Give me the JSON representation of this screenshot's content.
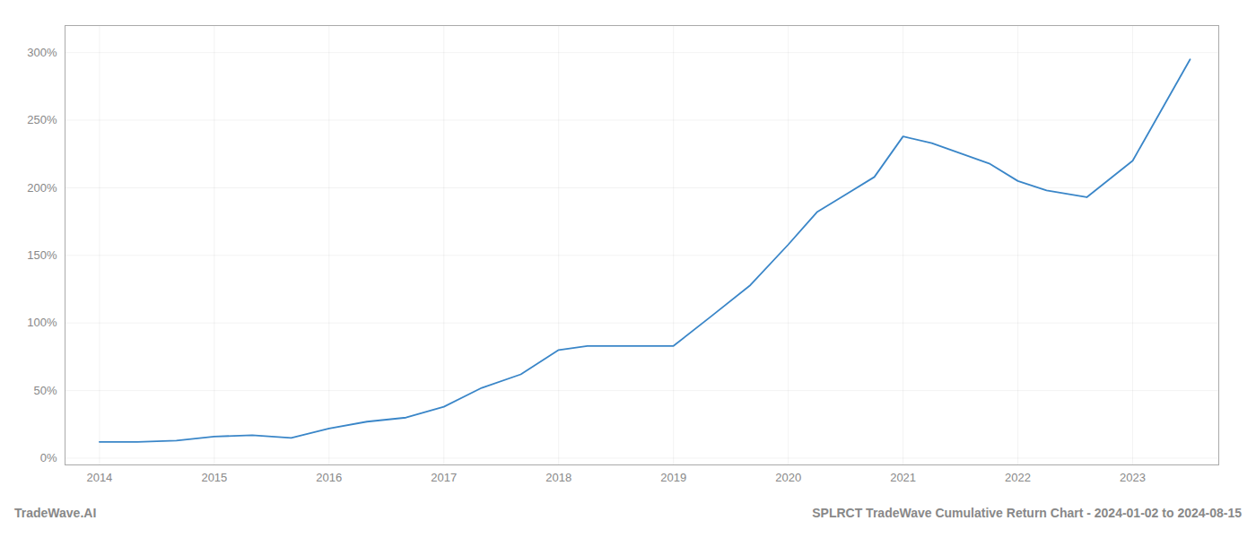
{
  "chart_data": {
    "type": "line",
    "title": "SPLRCT TradeWave Cumulative Return Chart - 2024-01-02 to 2024-08-15",
    "annotations": [
      "TradeWave.AI"
    ],
    "x": [
      2014.0,
      2014.33,
      2014.67,
      2015.0,
      2015.33,
      2015.67,
      2016.0,
      2016.33,
      2016.67,
      2017.0,
      2017.33,
      2017.67,
      2018.0,
      2018.25,
      2019.0,
      2019.33,
      2019.67,
      2020.0,
      2020.25,
      2020.5,
      2020.75,
      2021.0,
      2021.25,
      2021.75,
      2022.0,
      2022.25,
      2022.6,
      2023.0,
      2023.5
    ],
    "values": [
      12,
      12,
      13,
      16,
      17,
      15,
      22,
      27,
      30,
      38,
      52,
      62,
      80,
      83,
      83,
      105,
      128,
      158,
      182,
      195,
      208,
      238,
      233,
      218,
      205,
      198,
      193,
      220,
      295
    ],
    "color": "#3a86c8",
    "xlim": [
      2013.7,
      2023.75
    ],
    "xticks": [
      2014,
      2015,
      2016,
      2017,
      2018,
      2019,
      2020,
      2021,
      2022,
      2023
    ],
    "ylim": [
      -5,
      320
    ],
    "yticks": [
      {
        "value": 0,
        "label": "0%"
      },
      {
        "value": 50,
        "label": "50%"
      },
      {
        "value": 100,
        "label": "100%"
      },
      {
        "value": 150,
        "label": "150%"
      },
      {
        "value": 200,
        "label": "200%"
      },
      {
        "value": 250,
        "label": "250%"
      },
      {
        "value": 300,
        "label": "300%"
      }
    ],
    "grid": true
  }
}
